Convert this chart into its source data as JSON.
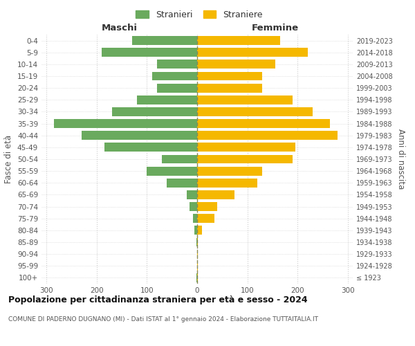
{
  "age_groups": [
    "100+",
    "95-99",
    "90-94",
    "85-89",
    "80-84",
    "75-79",
    "70-74",
    "65-69",
    "60-64",
    "55-59",
    "50-54",
    "45-49",
    "40-44",
    "35-39",
    "30-34",
    "25-29",
    "20-24",
    "15-19",
    "10-14",
    "5-9",
    "0-4"
  ],
  "birth_years": [
    "≤ 1923",
    "1924-1928",
    "1929-1933",
    "1934-1938",
    "1939-1943",
    "1944-1948",
    "1949-1953",
    "1954-1958",
    "1959-1963",
    "1964-1968",
    "1969-1973",
    "1974-1978",
    "1979-1983",
    "1984-1988",
    "1989-1993",
    "1994-1998",
    "1999-2003",
    "2004-2008",
    "2009-2013",
    "2014-2018",
    "2019-2023"
  ],
  "males": [
    1,
    0,
    0,
    1,
    5,
    8,
    15,
    20,
    60,
    100,
    70,
    185,
    230,
    285,
    170,
    120,
    80,
    90,
    80,
    190,
    130
  ],
  "females": [
    1,
    1,
    1,
    2,
    10,
    35,
    40,
    75,
    120,
    130,
    190,
    195,
    280,
    265,
    230,
    190,
    130,
    130,
    155,
    220,
    165
  ],
  "male_color": "#6aaa5e",
  "female_color": "#f5b800",
  "male_label": "Stranieri",
  "female_label": "Straniere",
  "title": "Popolazione per cittadinanza straniera per età e sesso - 2024",
  "subtitle": "COMUNE DI PADERNO DUGNANO (MI) - Dati ISTAT al 1° gennaio 2024 - Elaborazione TUTTAITALIA.IT",
  "ylabel_left": "Fasce di età",
  "ylabel_right": "Anni di nascita",
  "xlabel_left": "Maschi",
  "xlabel_right": "Femmine",
  "xlim": 310,
  "background_color": "#ffffff",
  "grid_color": "#cccccc"
}
